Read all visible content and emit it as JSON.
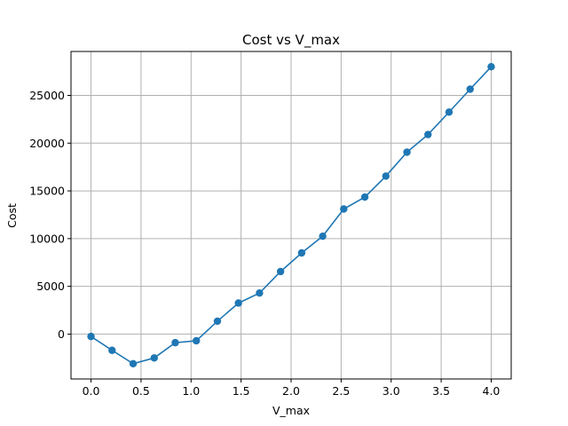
{
  "chart_data": {
    "type": "line",
    "title": "Cost vs V_max",
    "xlabel": "V_max",
    "ylabel": "Cost",
    "xlim": [
      -0.2,
      4.2
    ],
    "ylim": [
      -4700,
      29600
    ],
    "xticks": [
      0.0,
      0.5,
      1.0,
      1.5,
      2.0,
      2.5,
      3.0,
      3.5,
      4.0
    ],
    "xtick_labels": [
      "0.0",
      "0.5",
      "1.0",
      "1.5",
      "2.0",
      "2.5",
      "3.0",
      "3.5",
      "4.0"
    ],
    "yticks": [
      0,
      5000,
      10000,
      15000,
      20000,
      25000
    ],
    "ytick_labels": [
      "0",
      "5000",
      "10000",
      "15000",
      "20000",
      "25000"
    ],
    "grid": true,
    "marker": "circle",
    "colors": {
      "series": "#1f77b4",
      "grid": "#b0b0b0",
      "axes": "#000000"
    },
    "series": [
      {
        "x": [
          0.0,
          0.2105,
          0.4211,
          0.6316,
          0.8421,
          1.0526,
          1.2632,
          1.4737,
          1.6842,
          1.8947,
          2.1053,
          2.3158,
          2.5263,
          2.7368,
          2.9474,
          3.1579,
          3.3684,
          3.5789,
          3.7895,
          4.0
        ],
        "y": [
          -250,
          -1700,
          -3100,
          -2500,
          -900,
          -700,
          1350,
          3250,
          4300,
          6550,
          8500,
          10250,
          13100,
          14350,
          16550,
          19050,
          20900,
          23250,
          25650,
          28000
        ]
      }
    ]
  }
}
